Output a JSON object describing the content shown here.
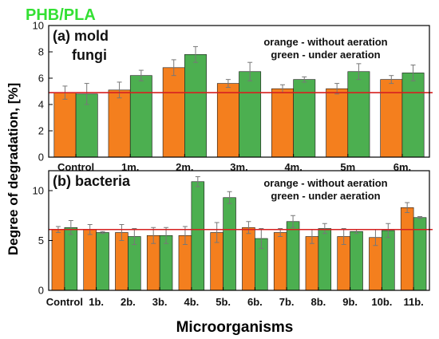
{
  "figure": {
    "title": "PHB/PLA",
    "ylabel": "Degree of degradation, [%]",
    "xlabel": "Microorganisms",
    "colors": {
      "without": "#f47f1e",
      "under": "#4caf50",
      "title": "#33e033",
      "refline": "#d62020"
    }
  },
  "chart_data": [
    {
      "type": "bar",
      "panel_label": "(a) mold",
      "panel_label_2": "fungi",
      "legend_line_1": "orange - without aeration",
      "legend_line_2": "green - under aeration",
      "categories": [
        "Control",
        "1m.",
        "2m.",
        "3m.",
        "4m.",
        "5m",
        "6m."
      ],
      "series": [
        {
          "values": [
            4.9,
            5.1,
            6.8,
            5.6,
            5.2,
            5.2,
            5.9
          ],
          "errors": [
            0.5,
            0.6,
            0.6,
            0.3,
            0.3,
            0.4,
            0.3
          ]
        },
        {
          "values": [
            4.8,
            6.2,
            7.8,
            6.5,
            5.9,
            6.5,
            6.4
          ],
          "errors": [
            0.8,
            0.4,
            0.6,
            0.7,
            0.2,
            0.6,
            0.6
          ]
        }
      ],
      "reference_line": 4.9,
      "ylim": [
        0,
        10
      ],
      "yticks": [
        0,
        2,
        4,
        6,
        8,
        10
      ]
    },
    {
      "type": "bar",
      "panel_label": "(b) bacteria",
      "legend_line_1": "orange - without aeration",
      "legend_line_2": "green - under aeration",
      "categories": [
        "Control",
        "1b.",
        "2b.",
        "3b.",
        "4b.",
        "5b.",
        "6b.",
        "7b.",
        "8b.",
        "9b.",
        "10b.",
        "11b."
      ],
      "series": [
        {
          "values": [
            6.1,
            6.1,
            5.8,
            5.5,
            5.5,
            5.8,
            6.3,
            5.8,
            5.4,
            5.4,
            5.3,
            8.3
          ],
          "errors": [
            0.3,
            0.5,
            0.8,
            0.8,
            0.9,
            1.0,
            0.6,
            0.4,
            0.7,
            0.8,
            0.8,
            0.5
          ]
        },
        {
          "values": [
            6.3,
            5.8,
            5.4,
            5.5,
            10.9,
            9.3,
            5.2,
            6.9,
            6.2,
            5.9,
            6.0,
            7.3
          ],
          "errors": [
            0.7,
            0.1,
            0.8,
            0.8,
            0.5,
            0.6,
            1.0,
            0.6,
            0.5,
            0.2,
            0.7,
            0.1
          ]
        }
      ],
      "reference_line": 6.1,
      "ylim": [
        0,
        12
      ],
      "yticks": [
        0,
        5,
        10
      ]
    }
  ]
}
